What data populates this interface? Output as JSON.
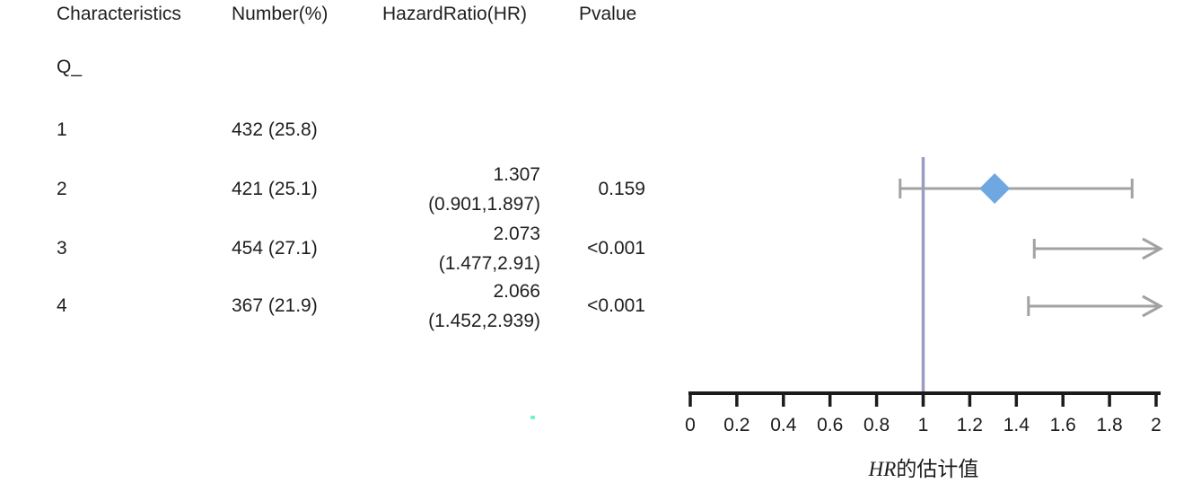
{
  "colors": {
    "text": "#1f1f1f",
    "axis": "#1b1b1b",
    "ci_line": "#a2a2a2",
    "diamond": "#6fa8e0",
    "ref_line": "#9a9cc4",
    "artifact_dot": "#6ef2cf"
  },
  "table": {
    "headers": {
      "characteristics": "Characteristics",
      "number": "Number(%)",
      "hazard_ratio": "HazardRatio(HR)",
      "pvalue": "Pvalue"
    },
    "group_label": "Q_",
    "rows": [
      {
        "label": "1",
        "number": "432 (25.8)",
        "hr_value": "",
        "hr_ci": "",
        "pvalue": ""
      },
      {
        "label": "2",
        "number": "421 (25.1)",
        "hr_value": "1.307",
        "hr_ci": "(0.901,1.897)",
        "pvalue": "0.159"
      },
      {
        "label": "3",
        "number": "454 (27.1)",
        "hr_value": "2.073",
        "hr_ci": "(1.477,2.91)",
        "pvalue": "<0.001"
      },
      {
        "label": "4",
        "number": "367 (21.9)",
        "hr_value": "2.066",
        "hr_ci": "(1.452,2.939)",
        "pvalue": "<0.001"
      }
    ]
  },
  "chart_data": {
    "type": "forest",
    "title": "",
    "xlabel_prefix": "HR",
    "xlabel_suffix": "的估计值",
    "xlim": [
      0,
      2
    ],
    "xticks": [
      0,
      0.2,
      0.4,
      0.6,
      0.8,
      1,
      1.2,
      1.4,
      1.6,
      1.8,
      2
    ],
    "reference_line": 1,
    "grid": false,
    "legend": "none",
    "series": [
      {
        "group": "Q_",
        "label": "1",
        "n_pct": "432 (25.8)",
        "hr": null,
        "ci_low": null,
        "ci_high": null,
        "pvalue": null,
        "reference": true
      },
      {
        "group": "Q_",
        "label": "2",
        "n_pct": "421 (25.1)",
        "hr": 1.307,
        "ci_low": 0.901,
        "ci_high": 1.897,
        "pvalue": "0.159"
      },
      {
        "group": "Q_",
        "label": "3",
        "n_pct": "454 (27.1)",
        "hr": 2.073,
        "ci_low": 1.477,
        "ci_high": 2.91,
        "pvalue": "<0.001"
      },
      {
        "group": "Q_",
        "label": "4",
        "n_pct": "367 (21.9)",
        "hr": 2.066,
        "ci_low": 1.452,
        "ci_high": 2.939,
        "pvalue": "<0.001"
      }
    ]
  }
}
